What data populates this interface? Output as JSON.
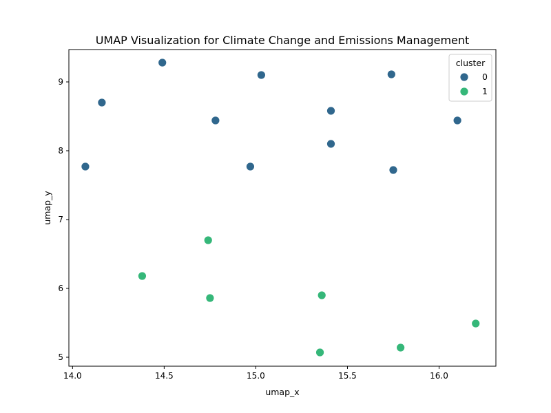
{
  "chart_data": {
    "type": "scatter",
    "title": "UMAP Visualization for Climate Change and Emissions Management",
    "xlabel": "umap_x",
    "ylabel": "umap_y",
    "xlim": [
      13.98,
      16.31
    ],
    "ylim": [
      4.87,
      9.47
    ],
    "xticks": [
      14.0,
      14.5,
      15.0,
      15.5,
      16.0
    ],
    "xtick_labels": [
      "14.0",
      "14.5",
      "15.0",
      "15.5",
      "16.0"
    ],
    "yticks": [
      5,
      6,
      7,
      8,
      9
    ],
    "ytick_labels": [
      "5",
      "6",
      "7",
      "8",
      "9"
    ],
    "grid": false,
    "legend": {
      "title": "cluster",
      "placement": "top-right",
      "entries": [
        "0",
        "1"
      ]
    },
    "series": [
      {
        "name": "0",
        "color": "#30678d",
        "points": [
          {
            "x": 14.07,
            "y": 7.77
          },
          {
            "x": 14.16,
            "y": 8.7
          },
          {
            "x": 14.49,
            "y": 9.28
          },
          {
            "x": 14.78,
            "y": 8.44
          },
          {
            "x": 14.97,
            "y": 7.77
          },
          {
            "x": 15.03,
            "y": 9.1
          },
          {
            "x": 15.41,
            "y": 8.58
          },
          {
            "x": 15.41,
            "y": 8.1
          },
          {
            "x": 15.74,
            "y": 9.11
          },
          {
            "x": 15.75,
            "y": 7.72
          },
          {
            "x": 16.1,
            "y": 8.44
          }
        ]
      },
      {
        "name": "1",
        "color": "#35b779",
        "points": [
          {
            "x": 14.38,
            "y": 6.18
          },
          {
            "x": 14.74,
            "y": 6.7
          },
          {
            "x": 14.75,
            "y": 5.86
          },
          {
            "x": 15.35,
            "y": 5.07
          },
          {
            "x": 15.36,
            "y": 5.9
          },
          {
            "x": 15.79,
            "y": 5.14
          },
          {
            "x": 16.2,
            "y": 5.49
          }
        ]
      }
    ]
  }
}
